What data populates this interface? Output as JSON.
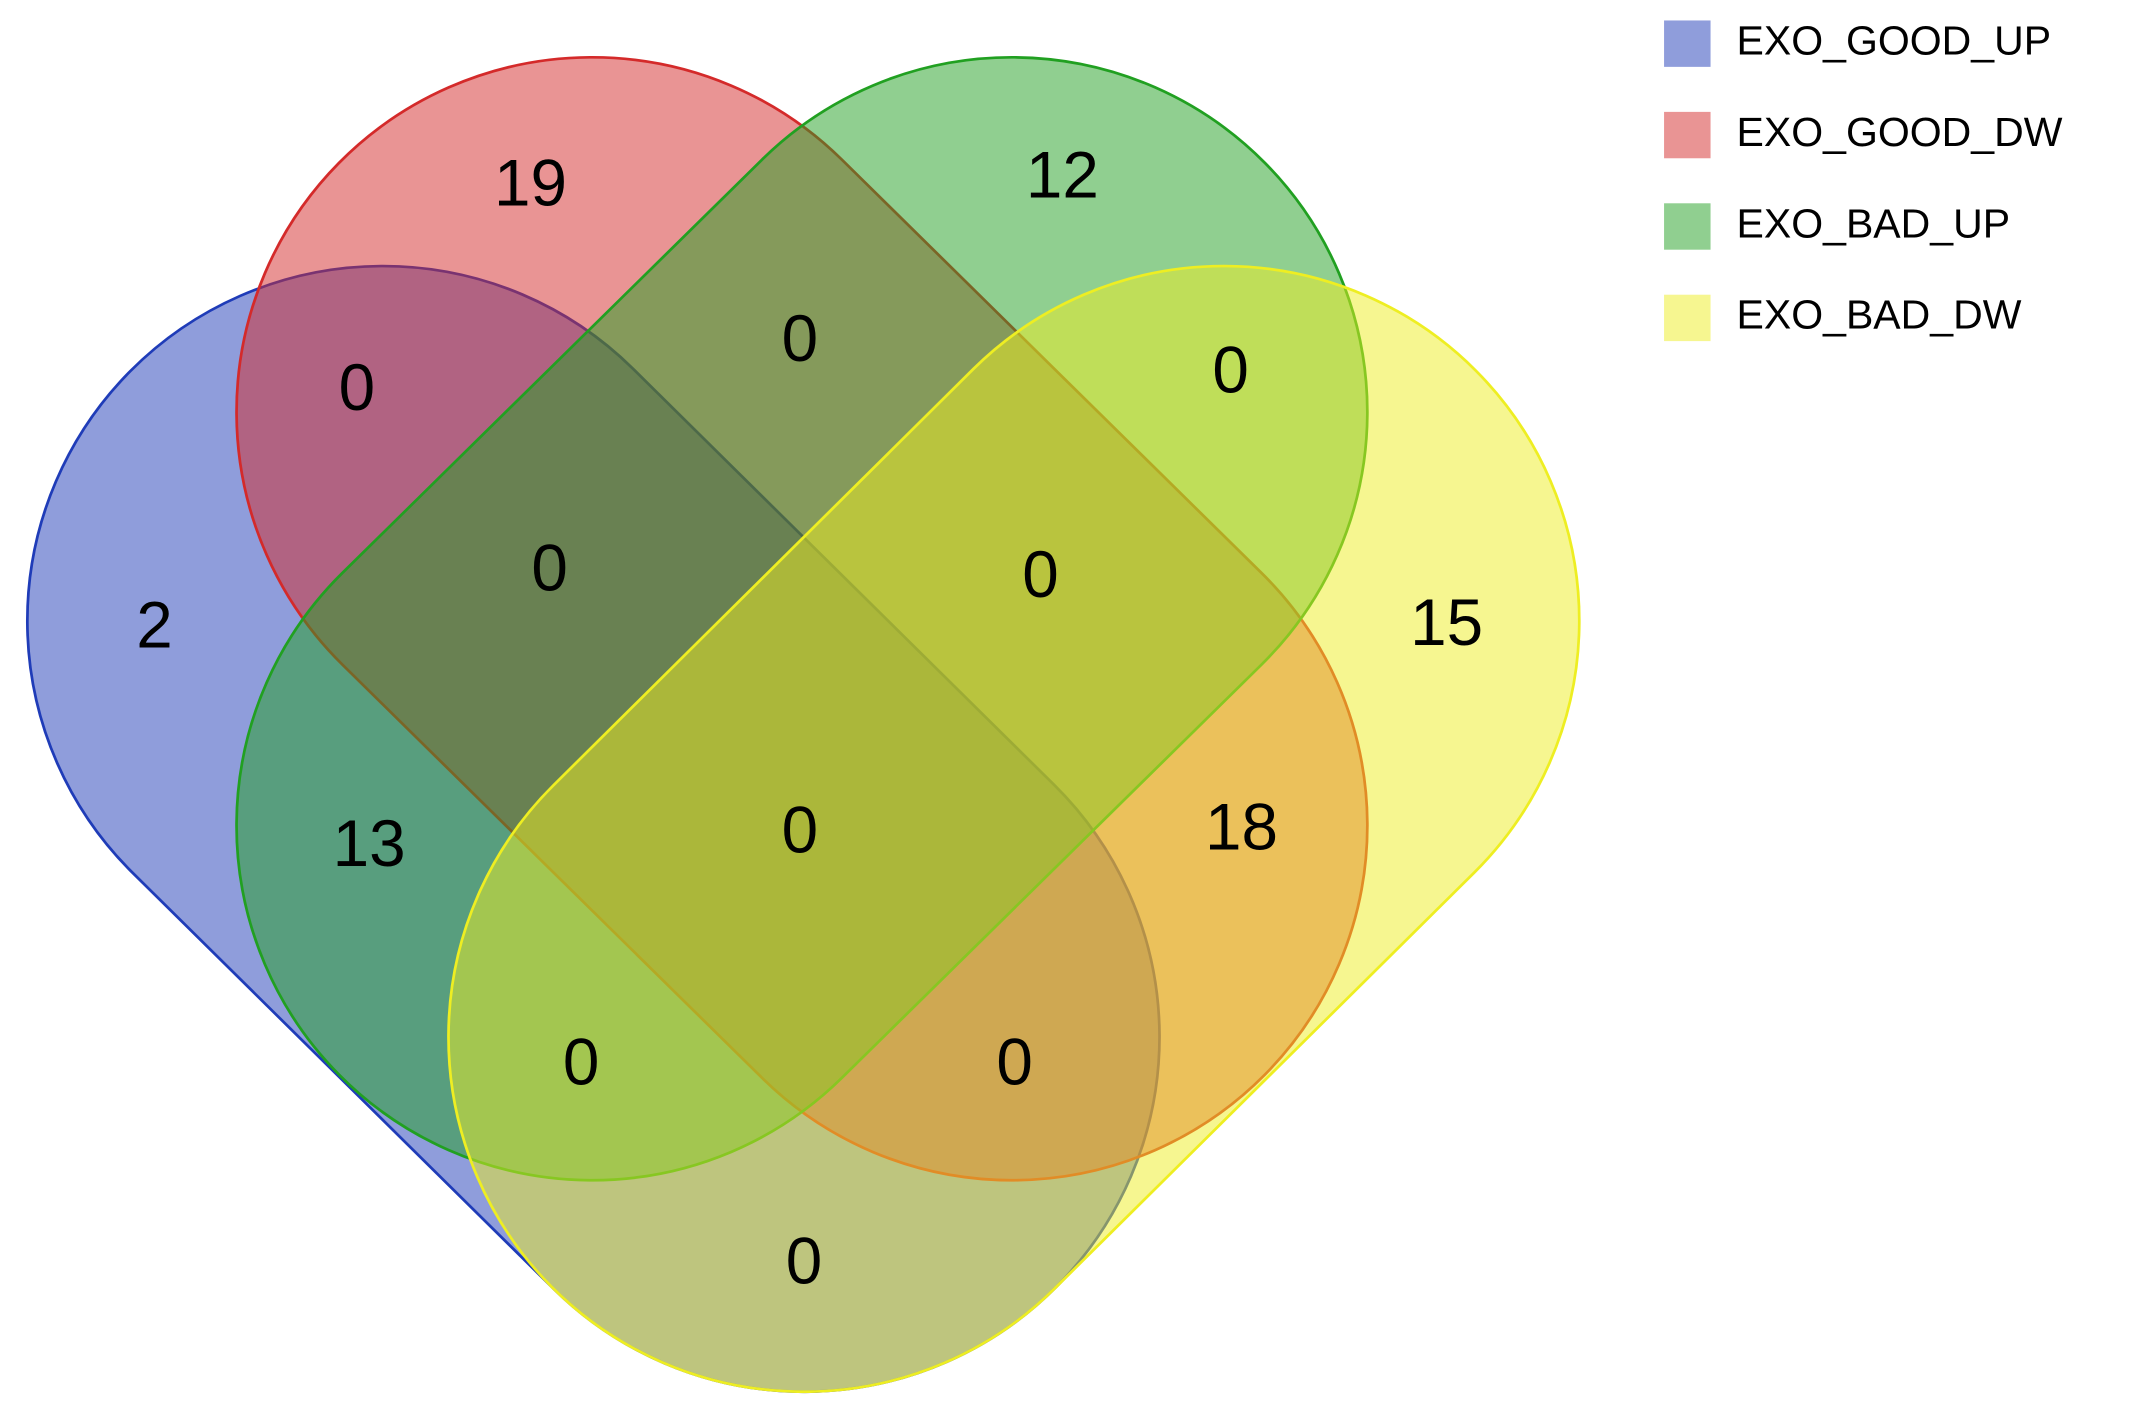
{
  "chart_data": {
    "type": "venn",
    "sets": [
      {
        "name": "EXO_GOOD_UP",
        "color": "#1f3cb8"
      },
      {
        "name": "EXO_GOOD_DW",
        "color": "#d42a2a"
      },
      {
        "name": "EXO_BAD_UP",
        "color": "#21a021"
      },
      {
        "name": "EXO_BAD_DW",
        "color": "#eeee22"
      }
    ],
    "regions": [
      {
        "sets": [
          "EXO_GOOD_UP"
        ],
        "value": 2
      },
      {
        "sets": [
          "EXO_GOOD_DW"
        ],
        "value": 19
      },
      {
        "sets": [
          "EXO_BAD_UP"
        ],
        "value": 12
      },
      {
        "sets": [
          "EXO_BAD_DW"
        ],
        "value": 15
      },
      {
        "sets": [
          "EXO_GOOD_UP",
          "EXO_GOOD_DW"
        ],
        "value": 0
      },
      {
        "sets": [
          "EXO_GOOD_DW",
          "EXO_BAD_UP"
        ],
        "value": 0
      },
      {
        "sets": [
          "EXO_BAD_UP",
          "EXO_BAD_DW"
        ],
        "value": 0
      },
      {
        "sets": [
          "EXO_GOOD_UP",
          "EXO_GOOD_DW",
          "EXO_BAD_UP"
        ],
        "value": 0
      },
      {
        "sets": [
          "EXO_GOOD_DW",
          "EXO_BAD_UP",
          "EXO_BAD_DW"
        ],
        "value": 0
      },
      {
        "sets": [
          "EXO_GOOD_UP",
          "EXO_GOOD_DW",
          "EXO_BAD_UP",
          "EXO_BAD_DW"
        ],
        "value": 0
      },
      {
        "sets": [
          "EXO_GOOD_UP",
          "EXO_BAD_UP"
        ],
        "value": 13
      },
      {
        "sets": [
          "EXO_GOOD_DW",
          "EXO_BAD_DW"
        ],
        "value": 18
      },
      {
        "sets": [
          "EXO_GOOD_UP",
          "EXO_BAD_UP",
          "EXO_BAD_DW"
        ],
        "value": 0
      },
      {
        "sets": [
          "EXO_GOOD_UP",
          "EXO_GOOD_DW",
          "EXO_BAD_DW"
        ],
        "value": 0
      },
      {
        "sets": [
          "EXO_GOOD_UP",
          "EXO_BAD_DW"
        ],
        "value": 0
      }
    ]
  }
}
